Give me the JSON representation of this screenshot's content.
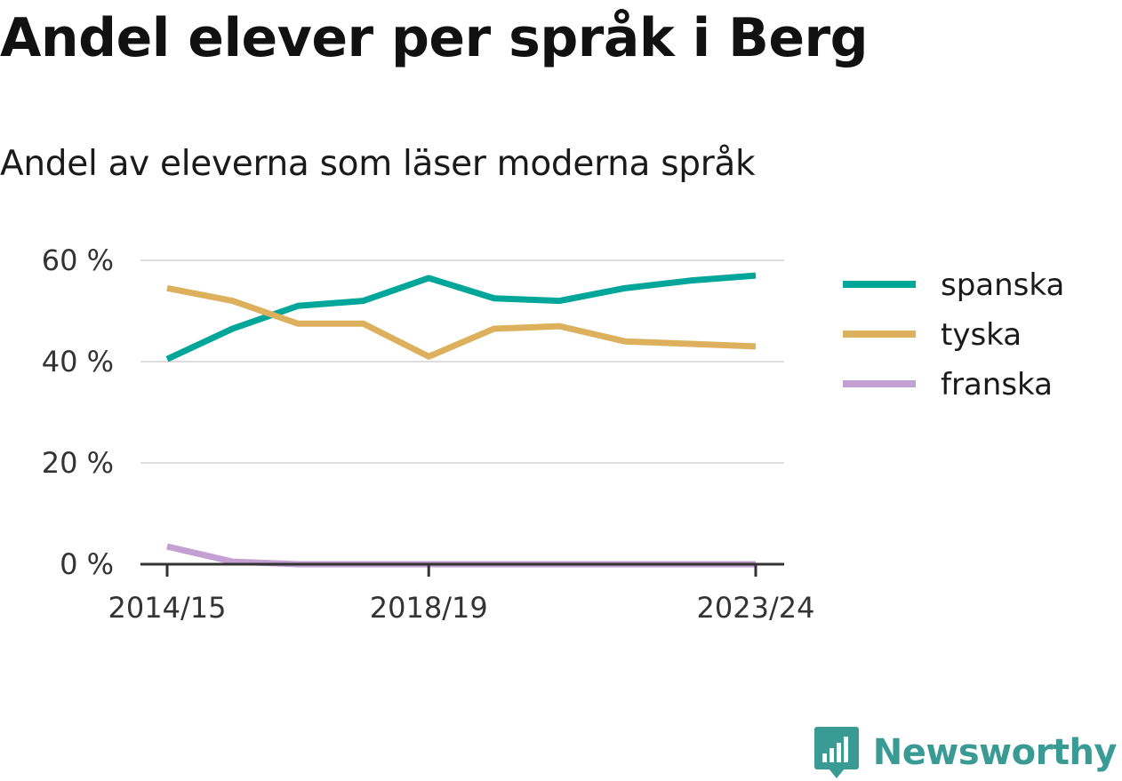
{
  "title": "Andel elever per språk i Berg",
  "subtitle": "Andel av eleverna som läser moderna språk",
  "brand": {
    "name": "Newsworthy",
    "icon": "newsworthy-logo-icon",
    "color": "#3a9a94"
  },
  "chart_data": {
    "type": "line",
    "title": "Andel elever per språk i Berg",
    "subtitle": "Andel av eleverna som läser moderna språk",
    "x": [
      "2014/15",
      "2015/16",
      "2016/17",
      "2017/18",
      "2018/19",
      "2019/20",
      "2020/21",
      "2021/22",
      "2022/23",
      "2023/24"
    ],
    "x_tick_labels": [
      "2014/15",
      "",
      "",
      "",
      "2018/19",
      "",
      "",
      "",
      "",
      "2023/24"
    ],
    "ylim": [
      0,
      60
    ],
    "y_ticks": [
      0,
      20,
      40,
      60
    ],
    "y_tick_labels": [
      "0 %",
      "20 %",
      "40 %",
      "60 %"
    ],
    "grid": true,
    "legend": "right",
    "series": [
      {
        "name": "spanska",
        "color": "#00a699",
        "values": [
          40.5,
          46.5,
          51.0,
          52.0,
          56.5,
          52.5,
          52.0,
          54.5,
          56.0,
          57.0
        ]
      },
      {
        "name": "tyska",
        "color": "#dcb05c",
        "values": [
          54.5,
          52.0,
          47.5,
          47.5,
          41.0,
          46.5,
          47.0,
          44.0,
          43.5,
          43.0
        ]
      },
      {
        "name": "franska",
        "color": "#c39fd2",
        "values": [
          3.5,
          0.5,
          0,
          0,
          0,
          0,
          0,
          0,
          0,
          0
        ]
      }
    ]
  }
}
